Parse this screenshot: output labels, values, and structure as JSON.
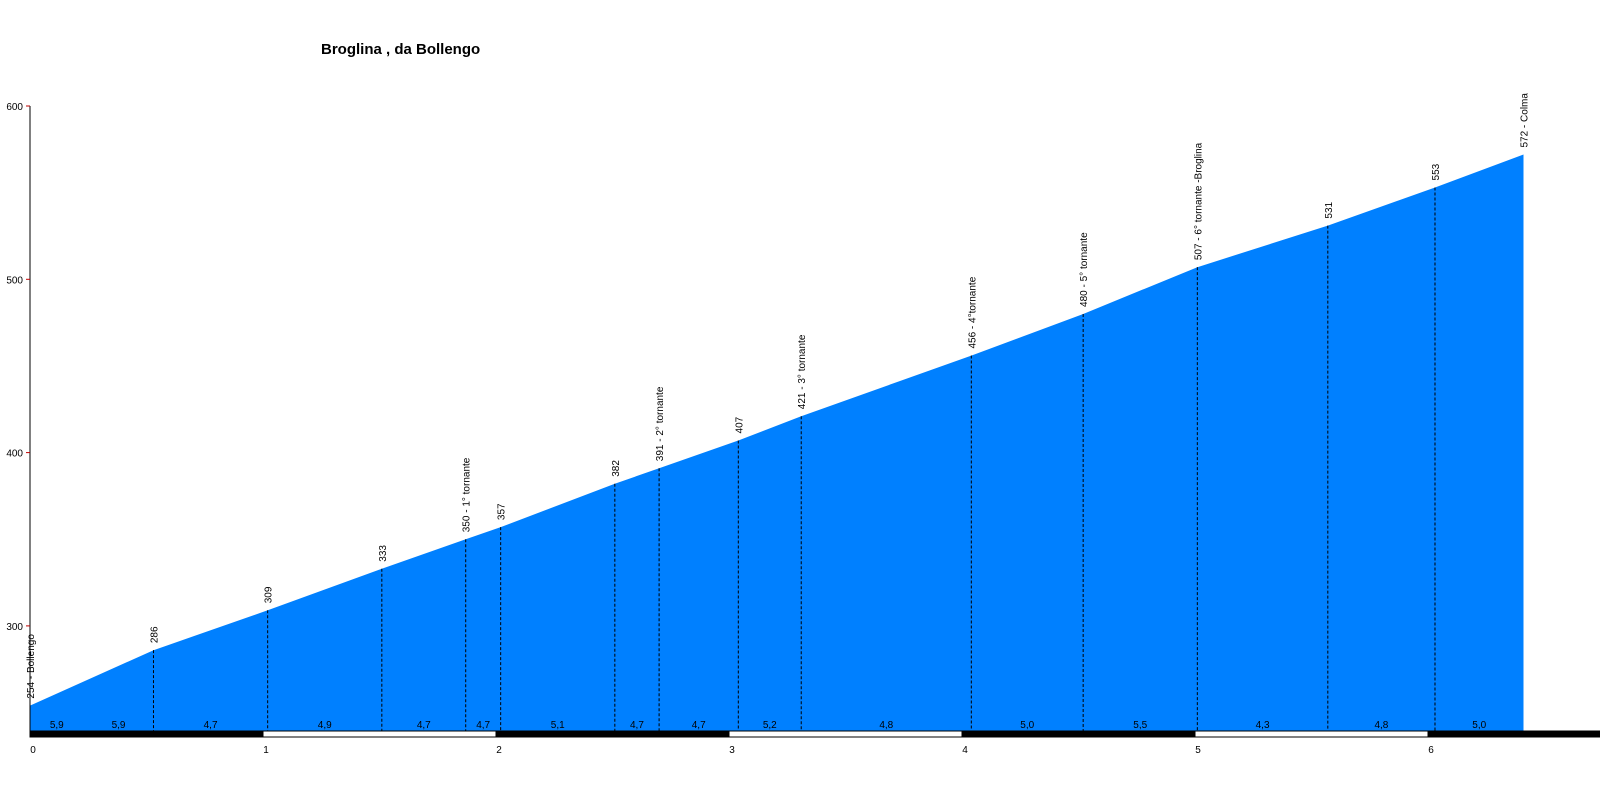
{
  "chart_data": {
    "type": "area",
    "title": "Broglina , da Bollengo",
    "xlabel": "",
    "ylabel": "",
    "xlim": [
      0,
      6.86
    ],
    "ylim": [
      240,
      600
    ],
    "y_ticks": [
      300,
      400,
      500,
      600
    ],
    "x_ticks": [
      0,
      1,
      2,
      3,
      4,
      5,
      6
    ],
    "fill_color": "#0080ff",
    "profile": [
      {
        "x": 0.0,
        "y": 254,
        "label": "254 - Bollengo"
      },
      {
        "x": 0.53,
        "y": 286,
        "label": "286"
      },
      {
        "x": 1.02,
        "y": 309,
        "label": "309"
      },
      {
        "x": 1.51,
        "y": 333,
        "label": "333"
      },
      {
        "x": 1.87,
        "y": 350,
        "label": "350 - 1° tornante"
      },
      {
        "x": 2.02,
        "y": 357,
        "label": "357"
      },
      {
        "x": 2.51,
        "y": 382,
        "label": "382"
      },
      {
        "x": 2.7,
        "y": 391,
        "label": "391 - 2° tornante"
      },
      {
        "x": 3.04,
        "y": 407,
        "label": "407"
      },
      {
        "x": 3.31,
        "y": 421,
        "label": "421 - 3° tornante"
      },
      {
        "x": 4.04,
        "y": 456,
        "label": "456 - 4°tornante"
      },
      {
        "x": 4.52,
        "y": 480,
        "label": "480 - 5° tornante"
      },
      {
        "x": 5.01,
        "y": 507,
        "label": "507 - 6° tornante -Broglina"
      },
      {
        "x": 5.57,
        "y": 531,
        "label": "531"
      },
      {
        "x": 6.03,
        "y": 553,
        "label": "553"
      },
      {
        "x": 6.41,
        "y": 572,
        "label": "572 - Colma"
      }
    ],
    "gradients": [
      {
        "from": 0.0,
        "to": 0.23,
        "value": "5,9"
      },
      {
        "from": 0.23,
        "to": 0.53,
        "value": "5,9"
      },
      {
        "from": 0.53,
        "to": 1.02,
        "value": "4,7"
      },
      {
        "from": 1.02,
        "to": 1.51,
        "value": "4,9"
      },
      {
        "from": 1.51,
        "to": 1.87,
        "value": "4,7"
      },
      {
        "from": 1.87,
        "to": 2.02,
        "value": "4,7"
      },
      {
        "from": 2.02,
        "to": 2.51,
        "value": "5,1"
      },
      {
        "from": 2.51,
        "to": 2.7,
        "value": "4,7"
      },
      {
        "from": 2.7,
        "to": 3.04,
        "value": "4,7"
      },
      {
        "from": 3.04,
        "to": 3.31,
        "value": "5,2"
      },
      {
        "from": 3.31,
        "to": 4.04,
        "value": "4,8"
      },
      {
        "from": 4.04,
        "to": 4.52,
        "value": "5,0"
      },
      {
        "from": 4.52,
        "to": 5.01,
        "value": "5,5"
      },
      {
        "from": 5.01,
        "to": 5.57,
        "value": "4,3"
      },
      {
        "from": 5.57,
        "to": 6.03,
        "value": "4,8"
      },
      {
        "from": 6.03,
        "to": 6.41,
        "value": "5,0"
      }
    ]
  }
}
